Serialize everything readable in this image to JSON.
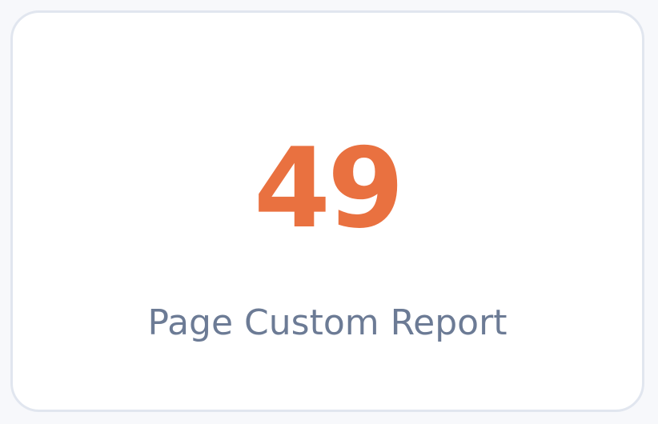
{
  "card": {
    "value": "49",
    "label": "Page Custom Report",
    "value_color": "#e97140",
    "label_color": "#6c7b95"
  }
}
